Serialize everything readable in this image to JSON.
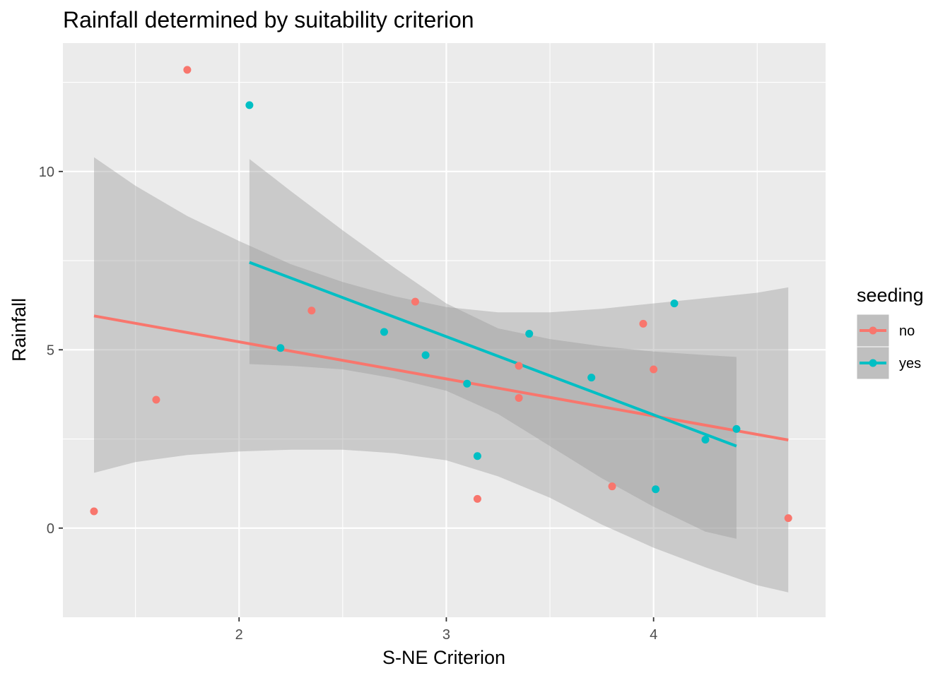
{
  "chart_data": {
    "type": "scatter",
    "title": "Rainfall determined by suitability criterion",
    "xlabel": "S-NE Criterion",
    "ylabel": "Rainfall",
    "xlim": [
      1.15,
      4.83
    ],
    "ylim": [
      -2.5,
      13.6
    ],
    "x_major_ticks": [
      2,
      3,
      4
    ],
    "x_minor_ticks": [
      1.5,
      2.5,
      3.5,
      4.5
    ],
    "y_major_ticks": [
      0,
      5,
      10
    ],
    "y_minor_ticks": [
      2.5,
      7.5,
      12.5
    ],
    "x_tick_labels": [
      "2",
      "3",
      "4"
    ],
    "y_tick_labels": [
      "0",
      "5",
      "10"
    ],
    "grid": true,
    "legend": {
      "title": "seeding",
      "position": "right",
      "entries": [
        "no",
        "yes"
      ]
    },
    "series": [
      {
        "name": "no",
        "color": "#f8766d",
        "x": [
          1.3,
          1.6,
          1.75,
          2.35,
          2.85,
          3.15,
          3.35,
          3.35,
          3.8,
          3.95,
          4.0,
          4.65
        ],
        "y": [
          0.47,
          3.6,
          12.85,
          6.1,
          6.35,
          0.82,
          4.55,
          3.65,
          1.17,
          5.73,
          4.45,
          0.28
        ],
        "fit_line": [
          [
            1.3,
            5.95
          ],
          [
            4.65,
            2.47
          ]
        ],
        "ci_band": {
          "x": [
            1.3,
            1.5,
            1.75,
            2.0,
            2.25,
            2.5,
            2.75,
            3.0,
            3.25,
            3.5,
            3.75,
            4.0,
            4.25,
            4.5,
            4.65
          ],
          "upper": [
            10.4,
            9.6,
            8.75,
            8.05,
            7.4,
            6.9,
            6.5,
            6.2,
            6.05,
            6.05,
            6.15,
            6.3,
            6.45,
            6.6,
            6.75
          ],
          "lower": [
            1.55,
            1.85,
            2.05,
            2.15,
            2.2,
            2.2,
            2.1,
            1.9,
            1.45,
            0.85,
            0.1,
            -0.55,
            -1.1,
            -1.6,
            -1.8
          ]
        }
      },
      {
        "name": "yes",
        "color": "#00bfc4",
        "x": [
          2.05,
          2.2,
          2.7,
          2.9,
          3.1,
          3.15,
          3.4,
          3.7,
          4.01,
          4.1,
          4.25,
          4.4
        ],
        "y": [
          11.86,
          5.05,
          5.5,
          4.85,
          4.05,
          2.02,
          5.45,
          4.22,
          1.09,
          6.3,
          2.48,
          2.78
        ],
        "fit_line": [
          [
            2.05,
            7.45
          ],
          [
            4.4,
            2.3
          ]
        ],
        "ci_band": {
          "x": [
            2.05,
            2.25,
            2.5,
            2.75,
            3.0,
            3.25,
            3.5,
            3.75,
            4.0,
            4.25,
            4.4
          ],
          "upper": [
            10.35,
            9.45,
            8.35,
            7.3,
            6.3,
            5.6,
            5.3,
            5.1,
            4.95,
            4.85,
            4.8
          ],
          "lower": [
            4.6,
            4.55,
            4.45,
            4.2,
            3.85,
            3.2,
            2.3,
            1.4,
            0.6,
            -0.1,
            -0.3
          ]
        }
      }
    ]
  }
}
